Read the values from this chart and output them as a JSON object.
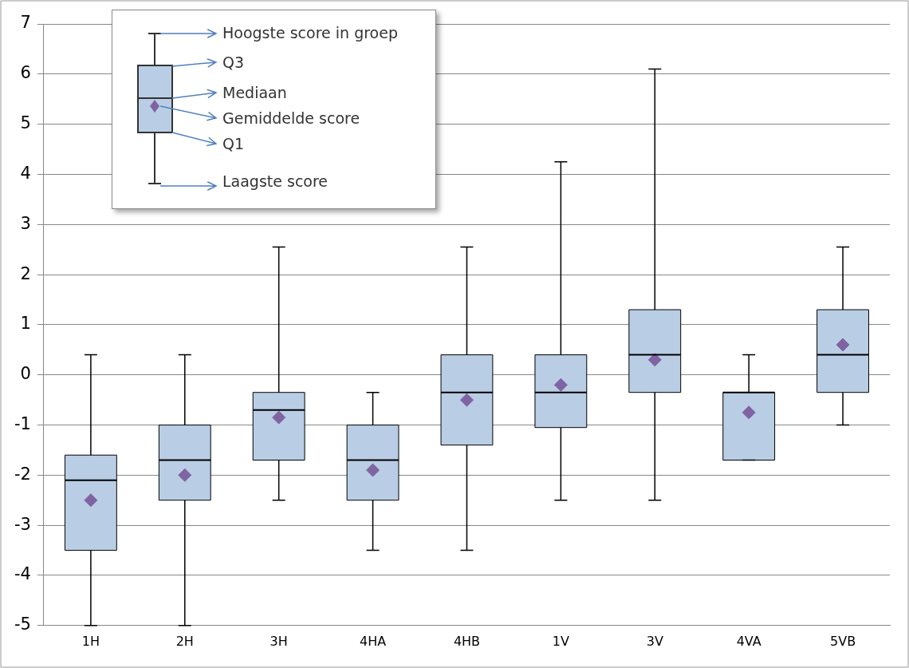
{
  "chart_data": {
    "type": "box",
    "categories": [
      "1H",
      "2H",
      "3H",
      "4HA",
      "4HB",
      "1V",
      "3V",
      "4VA",
      "5VB"
    ],
    "boxes": [
      {
        "low": -5,
        "q1": -3.5,
        "median": -2.1,
        "q3": -1.6,
        "high": 0.4,
        "mean": -2.5
      },
      {
        "low": -5,
        "q1": -2.5,
        "median": -1.7,
        "q3": -1.0,
        "high": 0.4,
        "mean": -2.0
      },
      {
        "low": -2.5,
        "q1": -1.7,
        "median": -0.7,
        "q3": -0.35,
        "high": 2.55,
        "mean": -0.85
      },
      {
        "low": -3.5,
        "q1": -2.5,
        "median": -1.7,
        "q3": -1.0,
        "high": -0.35,
        "mean": -1.9
      },
      {
        "low": -3.5,
        "q1": -1.4,
        "median": -0.35,
        "q3": 0.4,
        "high": 2.55,
        "mean": -0.5
      },
      {
        "low": -2.5,
        "q1": -1.05,
        "median": -0.35,
        "q3": 0.4,
        "high": 4.25,
        "mean": -0.2
      },
      {
        "low": -2.5,
        "q1": -0.35,
        "median": 0.4,
        "q3": 1.3,
        "high": 6.1,
        "mean": 0.3
      },
      {
        "low": -1.7,
        "q1": -1.7,
        "median": -0.35,
        "q3": -0.35,
        "high": 0.4,
        "mean": -0.75
      },
      {
        "low": -1.0,
        "q1": -0.35,
        "median": 0.4,
        "q3": 1.3,
        "high": 2.55,
        "mean": 0.6
      }
    ],
    "color": "#b9cde5",
    "marker": "diamond",
    "ylim": [
      -5,
      7
    ],
    "yticks": [
      -5,
      -4,
      -3,
      -2,
      -1,
      0,
      1,
      2,
      3,
      4,
      5,
      6,
      7
    ],
    "grid": "y",
    "annotations": [
      "Hoogste score in groep",
      "Q3",
      "Mediaan",
      "Gemiddelde score",
      "Q1",
      "Laagste score"
    ]
  }
}
